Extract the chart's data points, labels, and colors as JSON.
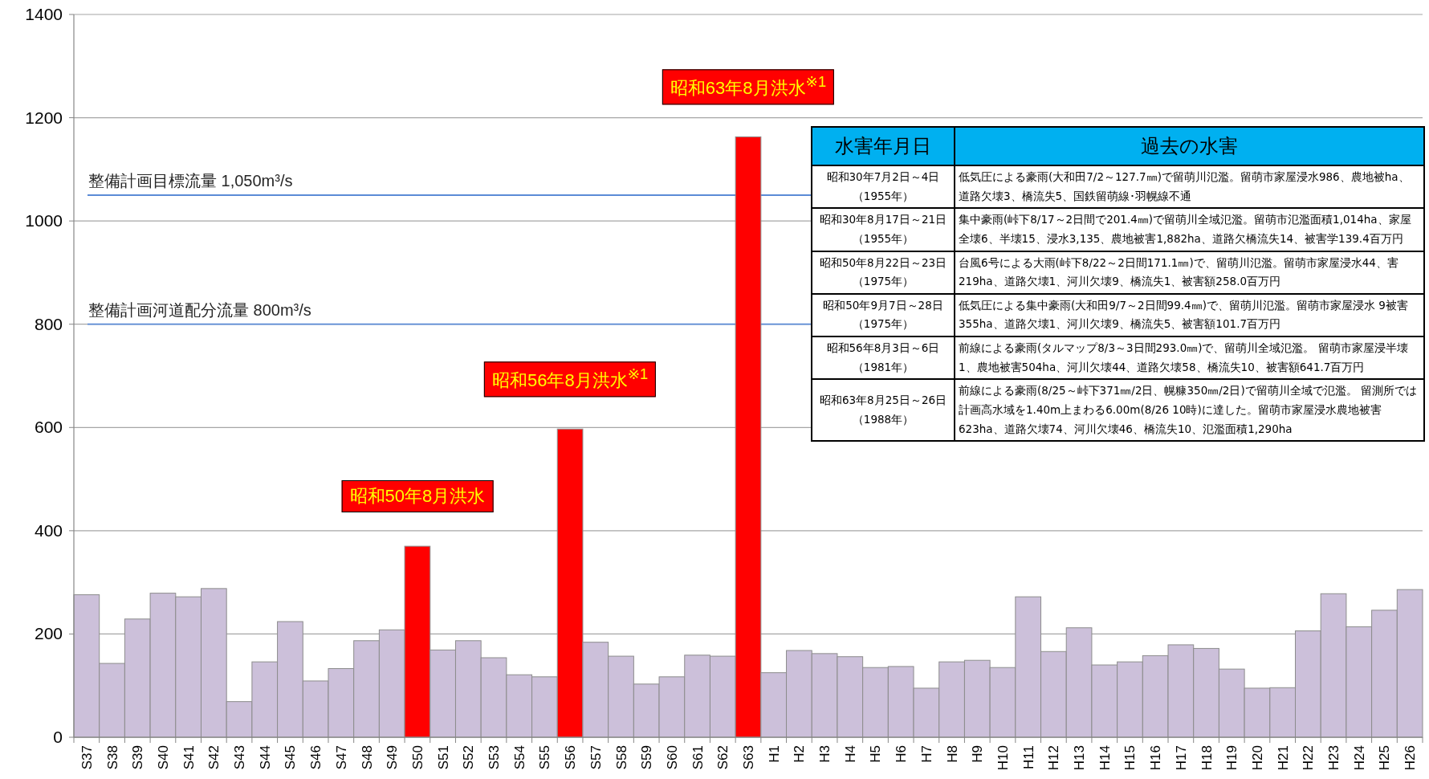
{
  "chart_data": [
    {
      "type": "bar",
      "categories": [
        "S37",
        "S38",
        "S39",
        "S40",
        "S41",
        "S42",
        "S43",
        "S44",
        "S45",
        "S46",
        "S47",
        "S48",
        "S49",
        "S50",
        "S51",
        "S52",
        "S53",
        "S54",
        "S55",
        "S56",
        "S57",
        "S58",
        "S59",
        "S60",
        "S61",
        "S62",
        "S63",
        "H1",
        "H2",
        "H3",
        "H4",
        "H5",
        "H6",
        "H7",
        "H8",
        "H9",
        "H10",
        "H11",
        "H12",
        "H13",
        "H14",
        "H15",
        "H16",
        "H17",
        "H18",
        "H19",
        "H20",
        "H21",
        "H22",
        "H23",
        "H24",
        "H25",
        "H26"
      ],
      "values": [
        276,
        143,
        229,
        279,
        272,
        288,
        69,
        146,
        224,
        109,
        133,
        187,
        208,
        370,
        169,
        187,
        154,
        121,
        117,
        597,
        184,
        157,
        103,
        117,
        159,
        157,
        1163,
        125,
        168,
        162,
        156,
        135,
        137,
        95,
        146,
        149,
        135,
        272,
        166,
        212,
        140,
        146,
        158,
        179,
        172,
        132,
        95,
        96,
        206,
        278,
        214,
        246,
        286
      ],
      "colors": [
        "#ccc0da",
        "#ccc0da",
        "#ccc0da",
        "#ccc0da",
        "#ccc0da",
        "#ccc0da",
        "#ccc0da",
        "#ccc0da",
        "#ccc0da",
        "#ccc0da",
        "#ccc0da",
        "#ccc0da",
        "#ccc0da",
        "#ff0000",
        "#ccc0da",
        "#ccc0da",
        "#ccc0da",
        "#ccc0da",
        "#ccc0da",
        "#ff0000",
        "#ccc0da",
        "#ccc0da",
        "#ccc0da",
        "#ccc0da",
        "#ccc0da",
        "#ccc0da",
        "#ff0000",
        "#ccc0da",
        "#ccc0da",
        "#ccc0da",
        "#ccc0da",
        "#ccc0da",
        "#ccc0da",
        "#ccc0da",
        "#ccc0da",
        "#ccc0da",
        "#ccc0da",
        "#ccc0da",
        "#ccc0da",
        "#ccc0da",
        "#ccc0da",
        "#ccc0da",
        "#ccc0da",
        "#ccc0da",
        "#ccc0da",
        "#ccc0da",
        "#ccc0da",
        "#ccc0da",
        "#ccc0da",
        "#ccc0da",
        "#ccc0da",
        "#ccc0da",
        "#ccc0da"
      ],
      "ylim": [
        0,
        1400
      ],
      "yticks": [
        0,
        200,
        400,
        600,
        800,
        1000,
        1200,
        1400
      ],
      "grid": "y",
      "ref_lines": [
        {
          "axis": "y",
          "value": 1050,
          "label": "整備計画目標流量 1,050m³/s",
          "color": "#5b8bd6"
        },
        {
          "axis": "y",
          "value": 800,
          "label": "整備計画河道配分流量 800m³/s",
          "color": "#5b8bd6"
        }
      ],
      "annotations": [
        "昭和50年8月洪水",
        "昭和56年8月洪水$^{※1}$",
        "昭和63年8月洪水$^{※1}$",
        "水害年月日",
        "過去の水害",
        "昭和30年7月2日～4日（1955年）",
        "低気圧による豪雨(大和田7/2～127.7㎜)で留萌川氾濫。留萌市家屋浸水986、農地被ha、道路欠壊3、橋流失5、国鉄留萌線･羽幌線不通",
        "昭和30年8月17日～21日（1955年）",
        "集中豪雨(峠下8/17～2日間で201.4㎜)で留萌川全域氾濫。留萌市氾濫面積1,014ha、家屋全壊6、半壊15、浸水3,135、農地被害1,882ha、道路欠橋流失14、被害学139.4百万円",
        "昭和50年8月22日～23日（1975年）",
        "台風6号による大雨(峠下8/22～2日間171.1㎜)で、留萌川氾濫。留萌市家屋浸水44、害219ha、道路欠壊1、河川欠壊9、橋流失1、被害額258.0百万円",
        "昭和50年9月7日～28日（1975年）",
        "低気圧による集中豪雨(大和田9/7～2日間99.4㎜)で、留萌川氾濫。留萌市家屋浸水 9被害355ha、道路欠壊1、河川欠壊9、橋流失5、被害額101.7百万円",
        "昭和56年8月3日～6日（1981年）",
        "前線による豪雨(タルマップ8/3～3日間293.0㎜)で、留萌川全域氾濫。 留萌市家屋浸半壊1、農地被害504ha、河川欠壊44、道路欠壊58、橋流失10、被害額641.7百万円",
        "昭和63年8月25日～26日（1988年）",
        "前線による豪雨(8/25～峠下371㎜/2日、幌糠350㎜/2日)で留萌川全域で氾濫。 留測所では計画高水域を1.40m上まわる6.00m(8/26 10時)に達した。留萌市家屋浸水農地被害623ha、道路欠壊74、河川欠壊46、橋流失10、氾濫面積1,290ha"
      ]
    }
  ]
}
